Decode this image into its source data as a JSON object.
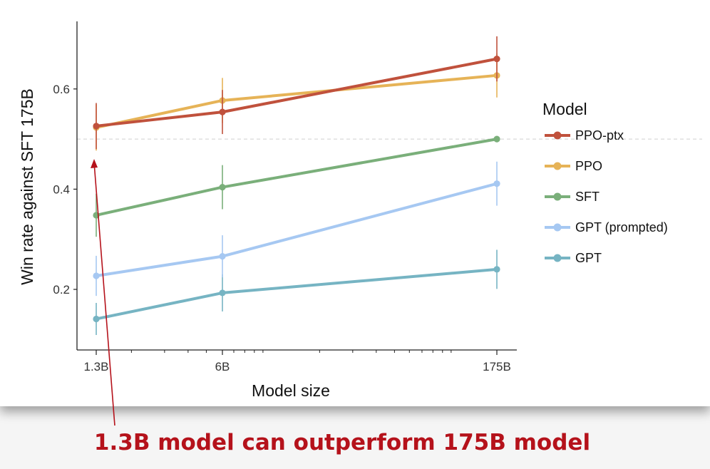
{
  "chart_data": {
    "type": "line",
    "x": [
      "1.3B",
      "6B",
      "175B"
    ],
    "x_scale": "log",
    "xlabel": "Model size",
    "ylabel": "Win rate against SFT 175B",
    "yticks": [
      0.2,
      0.4,
      0.6
    ],
    "ylim": [
      0.08,
      0.74
    ],
    "reference_line": 0.5,
    "legend_title": "Model",
    "legend_position": "right",
    "grid": false,
    "series": [
      {
        "name": "PPO-ptx",
        "color": "#c0513c",
        "values": [
          0.526,
          0.554,
          0.66
        ],
        "err": [
          0.046,
          0.044,
          0.045
        ]
      },
      {
        "name": "PPO",
        "color": "#e6b357",
        "values": [
          0.523,
          0.577,
          0.627
        ],
        "err": [
          0.046,
          0.045,
          0.044
        ]
      },
      {
        "name": "SFT",
        "color": "#7aaf7a",
        "values": [
          0.348,
          0.404,
          0.5
        ],
        "err": [
          0.043,
          0.044,
          0.0
        ]
      },
      {
        "name": "GPT (prompted)",
        "color": "#a6c8f2",
        "values": [
          0.227,
          0.266,
          0.411
        ],
        "err": [
          0.04,
          0.042,
          0.044
        ]
      },
      {
        "name": "GPT",
        "color": "#76b4c3",
        "values": [
          0.141,
          0.193,
          0.24
        ],
        "err": [
          0.032,
          0.037,
          0.039
        ]
      }
    ]
  },
  "annotation": {
    "text": "1.3B model can outperform 175B model",
    "color": "#b5121b"
  }
}
